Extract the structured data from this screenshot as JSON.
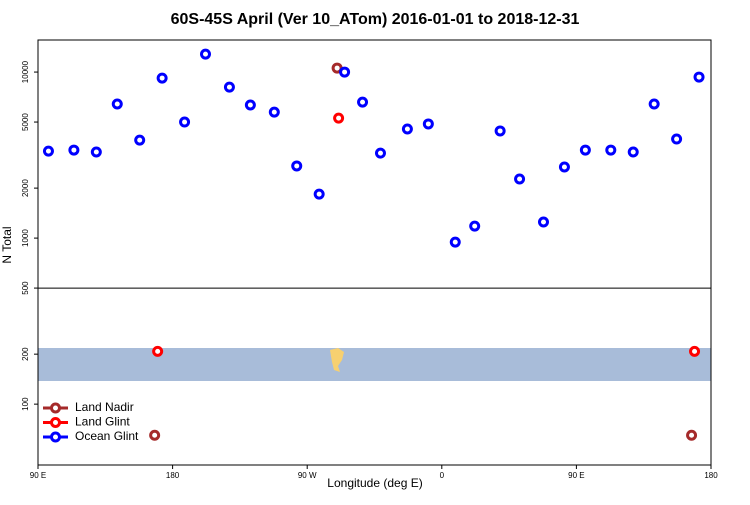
{
  "chart_data": {
    "type": "scatter",
    "title": "60S-45S April (Ver 10_ATom)   2016-01-01 to 2018-12-31",
    "xlabel": "Longitude (deg E)",
    "ylabel": "N Total",
    "xlim": [
      90,
      540
    ],
    "xticks": [
      {
        "value": 90,
        "label": "90 E"
      },
      {
        "value": 180,
        "label": "180"
      },
      {
        "value": 270,
        "label": "90 W"
      },
      {
        "value": 360,
        "label": "0"
      },
      {
        "value": 450,
        "label": "90 E"
      },
      {
        "value": 540,
        "label": "180"
      }
    ],
    "ylim": [
      43,
      15600
    ],
    "log_y": true,
    "yticks": [
      100,
      200,
      500,
      1000,
      2000,
      5000,
      10000
    ],
    "reference_line": 500,
    "legend": "bottom-left",
    "series": [
      {
        "name": "Land Nadir",
        "color": "#a52a2a",
        "x": [
          168,
          290,
          527
        ],
        "values": [
          65,
          10570,
          65
        ]
      },
      {
        "name": "Land Glint",
        "color": "#ff0000",
        "x": [
          170,
          291,
          529
        ],
        "values": [
          208,
          5280,
          208
        ]
      },
      {
        "name": "Ocean Glint",
        "color": "#0000ff",
        "x": [
          97,
          114,
          129,
          143,
          158,
          173,
          188,
          202,
          218,
          232,
          248,
          263,
          278,
          295,
          307,
          319,
          337,
          351,
          369,
          382,
          399,
          412,
          428,
          442,
          456,
          473,
          488,
          502,
          517,
          532
        ],
        "values": [
          3340,
          3390,
          3300,
          6420,
          3890,
          9200,
          5000,
          12830,
          8120,
          6330,
          5740,
          2720,
          1840,
          10000,
          6590,
          3250,
          4540,
          4870,
          946,
          1180,
          4420,
          2270,
          1250,
          2680,
          3390,
          3390,
          3300,
          6420,
          3950,
          9330
        ]
      }
    ]
  }
}
